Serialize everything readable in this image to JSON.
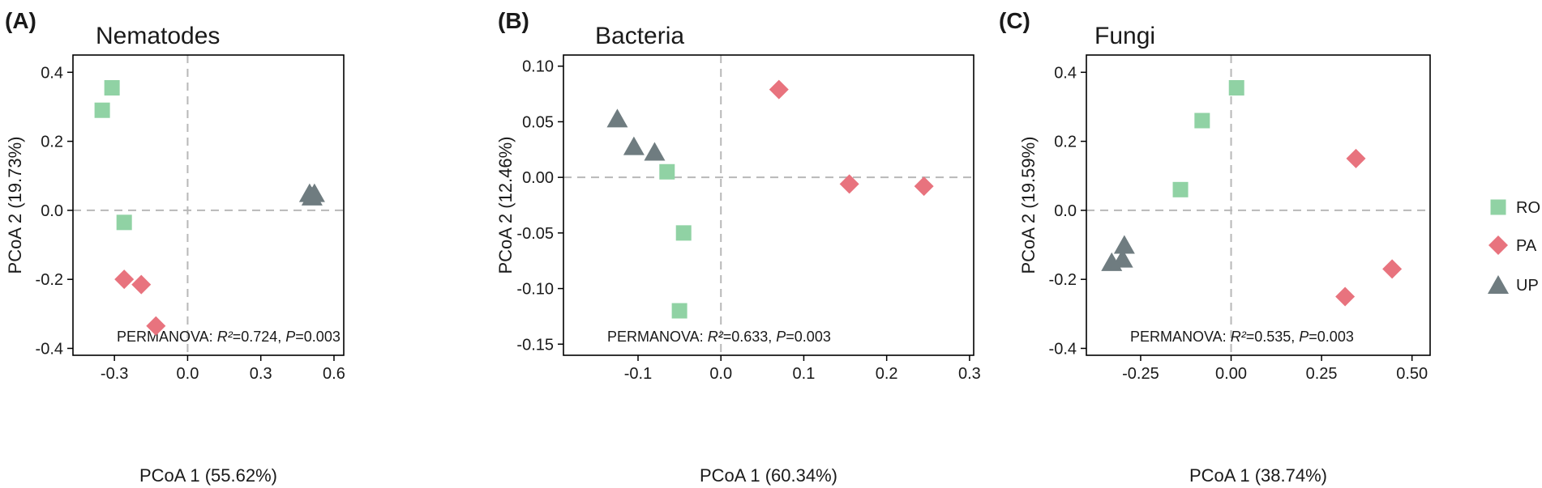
{
  "colors": {
    "RO": "#90d2a4",
    "PA": "#e8737e",
    "UP": "#6f7c80",
    "ref_line": "#b8b8b8",
    "axis": "#000000"
  },
  "legend": [
    {
      "key": "RO",
      "label": "RO",
      "shape": "square"
    },
    {
      "key": "PA",
      "label": "PA",
      "shape": "diamond"
    },
    {
      "key": "UP",
      "label": "UP",
      "shape": "triangle"
    }
  ],
  "chart_data": [
    {
      "type": "scatter",
      "panel_label": "(A)",
      "title": "Nematodes",
      "xlabel": "PCoA 1 (55.62%)",
      "ylabel": "PCoA 2 (19.73%)",
      "xlim": [
        -0.47,
        0.64
      ],
      "ylim": [
        -0.42,
        0.45
      ],
      "xticks": [
        {
          "v": -0.3,
          "label": "-0.3"
        },
        {
          "v": 0.0,
          "label": "0.0"
        },
        {
          "v": 0.3,
          "label": "0.3"
        },
        {
          "v": 0.6,
          "label": "0.6"
        }
      ],
      "yticks": [
        {
          "v": 0.4,
          "label": "0.4"
        },
        {
          "v": 0.2,
          "label": "0.2"
        },
        {
          "v": 0.0,
          "label": "0.0"
        },
        {
          "v": -0.2,
          "label": "-0.2"
        },
        {
          "v": -0.4,
          "label": "-0.4"
        }
      ],
      "annotation": {
        "prefix": "PERMANOVA: ",
        "r2_label": "R²",
        "r2_value": "=0.724, ",
        "p_label": "P",
        "p_value": "=0.003"
      },
      "series": [
        {
          "name": "RO",
          "points": [
            [
              -0.31,
              0.355
            ],
            [
              -0.35,
              0.29
            ],
            [
              -0.26,
              -0.035
            ]
          ]
        },
        {
          "name": "PA",
          "points": [
            [
              -0.26,
              -0.2
            ],
            [
              -0.19,
              -0.215
            ],
            [
              -0.13,
              -0.335
            ]
          ]
        },
        {
          "name": "UP",
          "points": [
            [
              0.5,
              0.05
            ],
            [
              0.51,
              0.04
            ],
            [
              0.52,
              0.05
            ]
          ]
        }
      ]
    },
    {
      "type": "scatter",
      "panel_label": "(B)",
      "title": "Bacteria",
      "xlabel": "PCoA 1 (60.34%)",
      "ylabel": "PCoA 2 (12.46%)",
      "xlim": [
        -0.19,
        0.305
      ],
      "ylim": [
        -0.16,
        0.11
      ],
      "xticks": [
        {
          "v": -0.1,
          "label": "-0.1"
        },
        {
          "v": 0.0,
          "label": "0.0"
        },
        {
          "v": 0.1,
          "label": "0.1"
        },
        {
          "v": 0.2,
          "label": "0.2"
        },
        {
          "v": 0.3,
          "label": "0.3"
        }
      ],
      "yticks": [
        {
          "v": 0.1,
          "label": "0.10"
        },
        {
          "v": 0.05,
          "label": "0.05"
        },
        {
          "v": 0.0,
          "label": "0.00"
        },
        {
          "v": -0.05,
          "label": "-0.05"
        },
        {
          "v": -0.1,
          "label": "-0.10"
        },
        {
          "v": -0.15,
          "label": "-0.15"
        }
      ],
      "annotation": {
        "prefix": "PERMANOVA: ",
        "r2_label": "R²",
        "r2_value": "=0.633, ",
        "p_label": "P",
        "p_value": "=0.003"
      },
      "series": [
        {
          "name": "RO",
          "points": [
            [
              -0.065,
              0.005
            ],
            [
              -0.045,
              -0.05
            ],
            [
              -0.05,
              -0.12
            ]
          ]
        },
        {
          "name": "PA",
          "points": [
            [
              0.07,
              0.079
            ],
            [
              0.155,
              -0.006
            ],
            [
              0.245,
              -0.008
            ]
          ]
        },
        {
          "name": "UP",
          "points": [
            [
              -0.125,
              0.053
            ],
            [
              -0.105,
              0.028
            ],
            [
              -0.08,
              0.023
            ]
          ]
        }
      ]
    },
    {
      "type": "scatter",
      "panel_label": "(C)",
      "title": "Fungi",
      "xlabel": "PCoA 1 (38.74%)",
      "ylabel": "PCoA 2 (19.59%)",
      "xlim": [
        -0.4,
        0.55
      ],
      "ylim": [
        -0.42,
        0.45
      ],
      "xticks": [
        {
          "v": -0.25,
          "label": "-0.25"
        },
        {
          "v": 0.0,
          "label": "0.00"
        },
        {
          "v": 0.25,
          "label": "0.25"
        },
        {
          "v": 0.5,
          "label": "0.50"
        }
      ],
      "yticks": [
        {
          "v": 0.4,
          "label": "0.4"
        },
        {
          "v": 0.2,
          "label": "0.2"
        },
        {
          "v": 0.0,
          "label": "0.0"
        },
        {
          "v": -0.2,
          "label": "-0.2"
        },
        {
          "v": -0.4,
          "label": "-0.4"
        }
      ],
      "annotation": {
        "prefix": "PERMANOVA: ",
        "r2_label": "R²",
        "r2_value": "=0.535, ",
        "p_label": "P",
        "p_value": "=0.003"
      },
      "series": [
        {
          "name": "RO",
          "points": [
            [
              0.015,
              0.355
            ],
            [
              -0.08,
              0.26
            ],
            [
              -0.14,
              0.06
            ]
          ]
        },
        {
          "name": "PA",
          "points": [
            [
              0.345,
              0.15
            ],
            [
              0.445,
              -0.17
            ],
            [
              0.315,
              -0.25
            ]
          ]
        },
        {
          "name": "UP",
          "points": [
            [
              -0.295,
              -0.1
            ],
            [
              -0.33,
              -0.15
            ],
            [
              -0.3,
              -0.14
            ]
          ]
        }
      ]
    }
  ]
}
